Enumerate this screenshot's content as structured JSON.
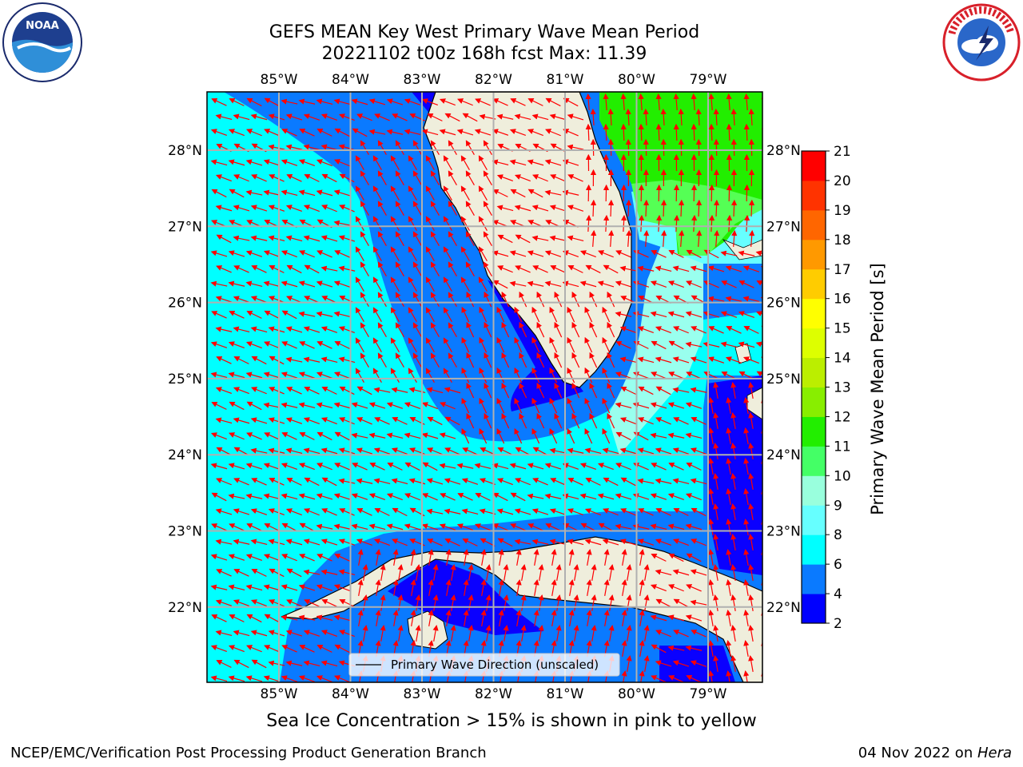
{
  "header": {
    "title_line1": "GEFS MEAN Key West Primary Wave Mean Period",
    "title_line2": "20221102 t00z 168h fcst   Max: 11.39"
  },
  "logos": {
    "left": {
      "name": "noaa-logo",
      "text": "NOAA"
    },
    "right": {
      "name": "national-weather-service-logo",
      "text": "NATIONAL WEATHER SERVICE"
    }
  },
  "map": {
    "lon_labels": [
      "85°W",
      "84°W",
      "83°W",
      "82°W",
      "81°W",
      "80°W",
      "79°W"
    ],
    "lat_labels": [
      "28°N",
      "27°N",
      "26°N",
      "25°N",
      "24°N",
      "23°N",
      "22°N"
    ],
    "legend_label": "Primary Wave Direction (unscaled)",
    "colors": {
      "ocean_4_6": "#0a7aff",
      "ocean_2_4": "#0a00ff",
      "ocean_6_8": "#00ffff",
      "ocean_8_9": "#66ffff",
      "ocean_9_10": "#99ffee",
      "ocean_10_11": "#55ff55",
      "ocean_11_12": "#22ee00",
      "land": "#efeedc",
      "arrows": "#ff0000",
      "grid": "#b0b0b0"
    }
  },
  "colorbar": {
    "label": "Primary Wave Mean Period [s]",
    "ticks": [
      "2",
      "4",
      "6",
      "8",
      "9",
      "10",
      "11",
      "12",
      "13",
      "14",
      "15",
      "16",
      "17",
      "18",
      "19",
      "20",
      "21"
    ],
    "colors": [
      "#0000ff",
      "#0a7aff",
      "#00ffff",
      "#66ffff",
      "#99ffdd",
      "#44ff66",
      "#22ee00",
      "#88ee00",
      "#bbee00",
      "#ddff00",
      "#ffff00",
      "#ffcc00",
      "#ff9900",
      "#ff6600",
      "#ff3300",
      "#ff0000"
    ]
  },
  "footer": {
    "note": "Sea Ice Concentration > 15% is shown in pink to yellow",
    "credit_left": "NCEP/EMC/Verification Post Processing Product Generation Branch",
    "credit_right_date": "04 Nov 2022 on ",
    "credit_right_machine": "Hera"
  }
}
